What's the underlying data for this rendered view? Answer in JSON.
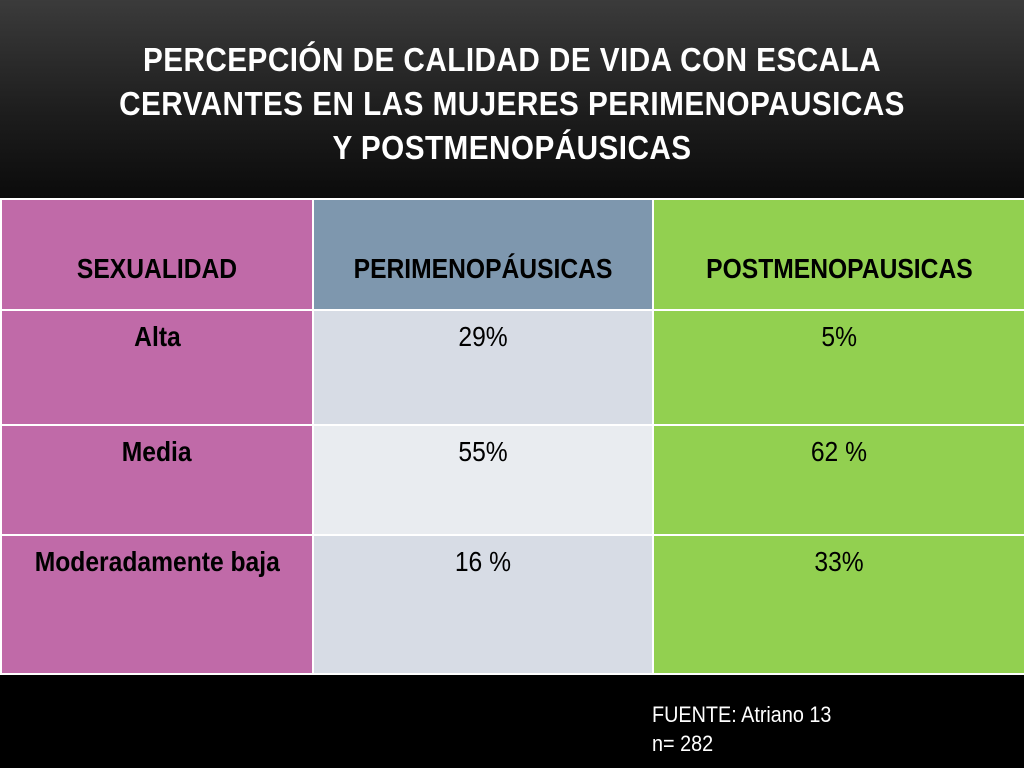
{
  "slide": {
    "title": "PERCEPCIÓN DE CALIDAD DE VIDA CON ESCALA\nCERVANTES  EN LAS MUJERES  PERIMENOPAUSICAS\nY POSTMENOPÁUSICAS"
  },
  "table": {
    "headers": [
      "SEXUALIDAD",
      "PERIMENOPÁUSICAS",
      "POSTMENOPAUSICAS"
    ],
    "rows": [
      {
        "label": "Alta",
        "peri": "29%",
        "post": "5%"
      },
      {
        "label": "Media",
        "peri": "55%",
        "post": "62 %"
      },
      {
        "label": "Moderadamente baja",
        "peri": "16 %",
        "post": "33%"
      }
    ]
  },
  "footnote": {
    "source": "FUENTE: Atriano 13",
    "sample": "n= 282"
  },
  "colors": {
    "header_background": "#1e1e1e",
    "label_column": "#c06aa8",
    "peri_header": "#7e97ae",
    "post_column": "#92d050",
    "peri_cells_dark": "#d7dce5",
    "peri_cells_light": "#e9ecf0"
  }
}
